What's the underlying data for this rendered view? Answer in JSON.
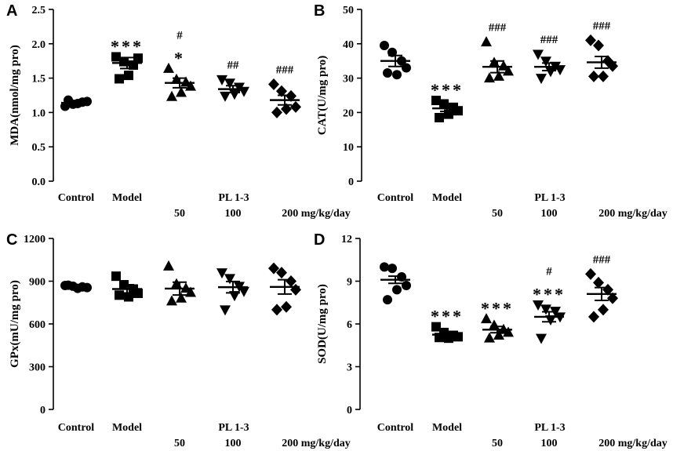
{
  "chart_data": [
    {
      "panel_label": "A",
      "type": "scatter",
      "ylabel": "MDA(nmol/mg pro)",
      "ylim": [
        0,
        2.5
      ],
      "ytick_labels": [
        "0.0",
        "0.5",
        "1.0",
        "1.5",
        "2.0",
        "2.5"
      ],
      "yticks": [
        0,
        0.5,
        1.0,
        1.5,
        2.0,
        2.5
      ],
      "categories": [
        "Control",
        "Model",
        "50",
        "100",
        "200 mg/kg/day"
      ],
      "group_label": "PL 1-3",
      "series": [
        {
          "name": "Control",
          "marker": "circle",
          "mean": 1.14,
          "sem": 0.03,
          "points": [
            1.09,
            1.12,
            1.15,
            1.16,
            1.13,
            1.18
          ]
        },
        {
          "name": "Model",
          "marker": "square",
          "mean": 1.72,
          "sem": 0.08,
          "points": [
            1.81,
            1.74,
            1.69,
            1.79,
            1.54,
            1.49
          ]
        },
        {
          "name": "50",
          "marker": "triangle-up",
          "mean": 1.43,
          "sem": 0.07,
          "points": [
            1.64,
            1.48,
            1.44,
            1.38,
            1.29,
            1.23
          ]
        },
        {
          "name": "100",
          "marker": "triangle-down",
          "mean": 1.34,
          "sem": 0.05,
          "points": [
            1.48,
            1.43,
            1.37,
            1.31,
            1.27,
            1.24
          ]
        },
        {
          "name": "200 mg/kg/day",
          "marker": "diamond",
          "mean": 1.18,
          "sem": 0.07,
          "points": [
            1.41,
            1.31,
            1.24,
            1.08,
            1.05,
            1.0
          ]
        }
      ],
      "annotations": [
        {
          "group": "Model",
          "lines": [
            "***"
          ]
        },
        {
          "group": "50",
          "lines": [
            "#",
            "*"
          ]
        },
        {
          "group": "100",
          "lines": [
            "##"
          ]
        },
        {
          "group": "200 mg/kg/day",
          "lines": [
            "###"
          ]
        }
      ]
    },
    {
      "panel_label": "B",
      "type": "scatter",
      "ylabel": "CAT(U/mg pro)",
      "ylim": [
        0,
        50
      ],
      "ytick_labels": [
        "0",
        "10",
        "20",
        "30",
        "40",
        "50"
      ],
      "yticks": [
        0,
        10,
        20,
        30,
        40,
        50
      ],
      "categories": [
        "Control",
        "Model",
        "50",
        "100",
        "200 mg/kg/day"
      ],
      "group_label": "PL 1-3",
      "series": [
        {
          "name": "Control",
          "marker": "circle",
          "mean": 35,
          "sem": 1.6,
          "points": [
            39.5,
            37.5,
            35,
            33,
            31,
            31.5
          ]
        },
        {
          "name": "Model",
          "marker": "square",
          "mean": 21.2,
          "sem": 0.9,
          "points": [
            23.5,
            22.5,
            21.5,
            20.5,
            19.5,
            18.5
          ]
        },
        {
          "name": "50",
          "marker": "triangle-up",
          "mean": 33.3,
          "sem": 1.7,
          "points": [
            40.5,
            34.5,
            33.5,
            32,
            30.5,
            30
          ]
        },
        {
          "name": "100",
          "marker": "triangle-down",
          "mean": 33.3,
          "sem": 1.1,
          "points": [
            37,
            35,
            33.5,
            32.5,
            32,
            30
          ]
        },
        {
          "name": "200 mg/kg/day",
          "marker": "diamond",
          "mean": 34.6,
          "sem": 1.7,
          "points": [
            41,
            39.5,
            35,
            33.5,
            30.5,
            30.5
          ]
        }
      ],
      "annotations": [
        {
          "group": "Model",
          "lines": [
            "***"
          ]
        },
        {
          "group": "50",
          "lines": [
            "###"
          ]
        },
        {
          "group": "100",
          "lines": [
            "###"
          ]
        },
        {
          "group": "200 mg/kg/day",
          "lines": [
            "###"
          ]
        }
      ]
    },
    {
      "panel_label": "C",
      "type": "scatter",
      "ylabel": "GPx(mU/mg pro)",
      "ylim": [
        0,
        1200
      ],
      "ytick_labels": [
        "0",
        "300",
        "600",
        "900",
        "1200"
      ],
      "yticks": [
        0,
        300,
        600,
        900,
        1200
      ],
      "categories": [
        "Control",
        "Model",
        "50",
        "100",
        "200 mg/kg/day"
      ],
      "group_label": "PL 1-3",
      "series": [
        {
          "name": "Control",
          "marker": "circle",
          "mean": 860,
          "sem": 8,
          "points": [
            870,
            865,
            860,
            855,
            850,
            872
          ]
        },
        {
          "name": "Model",
          "marker": "square",
          "mean": 845,
          "sem": 30,
          "points": [
            935,
            875,
            845,
            815,
            790,
            802
          ]
        },
        {
          "name": "50",
          "marker": "triangle-up",
          "mean": 848,
          "sem": 45,
          "points": [
            1005,
            880,
            850,
            820,
            780,
            760
          ]
        },
        {
          "name": "100",
          "marker": "triangle-down",
          "mean": 858,
          "sem": 40,
          "points": [
            960,
            920,
            865,
            830,
            800,
            700
          ]
        },
        {
          "name": "200 mg/kg/day",
          "marker": "diamond",
          "mean": 860,
          "sem": 50,
          "points": [
            990,
            960,
            900,
            840,
            720,
            700
          ]
        }
      ],
      "annotations": []
    },
    {
      "panel_label": "D",
      "type": "scatter",
      "ylabel": "SOD(U/mg pro)",
      "ylim": [
        0,
        12
      ],
      "ytick_labels": [
        "0",
        "3",
        "6",
        "9",
        "12"
      ],
      "yticks": [
        0,
        3,
        6,
        9,
        12
      ],
      "categories": [
        "Control",
        "Model",
        "50",
        "100",
        "200 mg/kg/day"
      ],
      "group_label": "PL 1-3",
      "series": [
        {
          "name": "Control",
          "marker": "circle",
          "mean": 9.1,
          "sem": 0.25,
          "points": [
            10.0,
            9.9,
            9.3,
            8.7,
            8.4,
            7.7
          ]
        },
        {
          "name": "Model",
          "marker": "square",
          "mean": 5.25,
          "sem": 0.12,
          "points": [
            5.8,
            5.4,
            5.2,
            5.1,
            5.0,
            5.05
          ]
        },
        {
          "name": "50",
          "marker": "triangle-up",
          "mean": 5.6,
          "sem": 0.22,
          "points": [
            6.35,
            5.9,
            5.6,
            5.4,
            5.2,
            5.0
          ]
        },
        {
          "name": "100",
          "marker": "triangle-down",
          "mean": 6.5,
          "sem": 0.35,
          "points": [
            7.35,
            7.05,
            6.9,
            6.5,
            6.3,
            5.0
          ]
        },
        {
          "name": "200 mg/kg/day",
          "marker": "diamond",
          "mean": 8.1,
          "sem": 0.45,
          "points": [
            9.5,
            8.9,
            8.4,
            7.8,
            7.0,
            6.5
          ]
        }
      ],
      "annotations": [
        {
          "group": "Model",
          "lines": [
            "***"
          ]
        },
        {
          "group": "50",
          "lines": [
            "***"
          ]
        },
        {
          "group": "100",
          "lines": [
            "#",
            "***"
          ]
        },
        {
          "group": "200 mg/kg/day",
          "lines": [
            "###"
          ]
        }
      ]
    }
  ]
}
